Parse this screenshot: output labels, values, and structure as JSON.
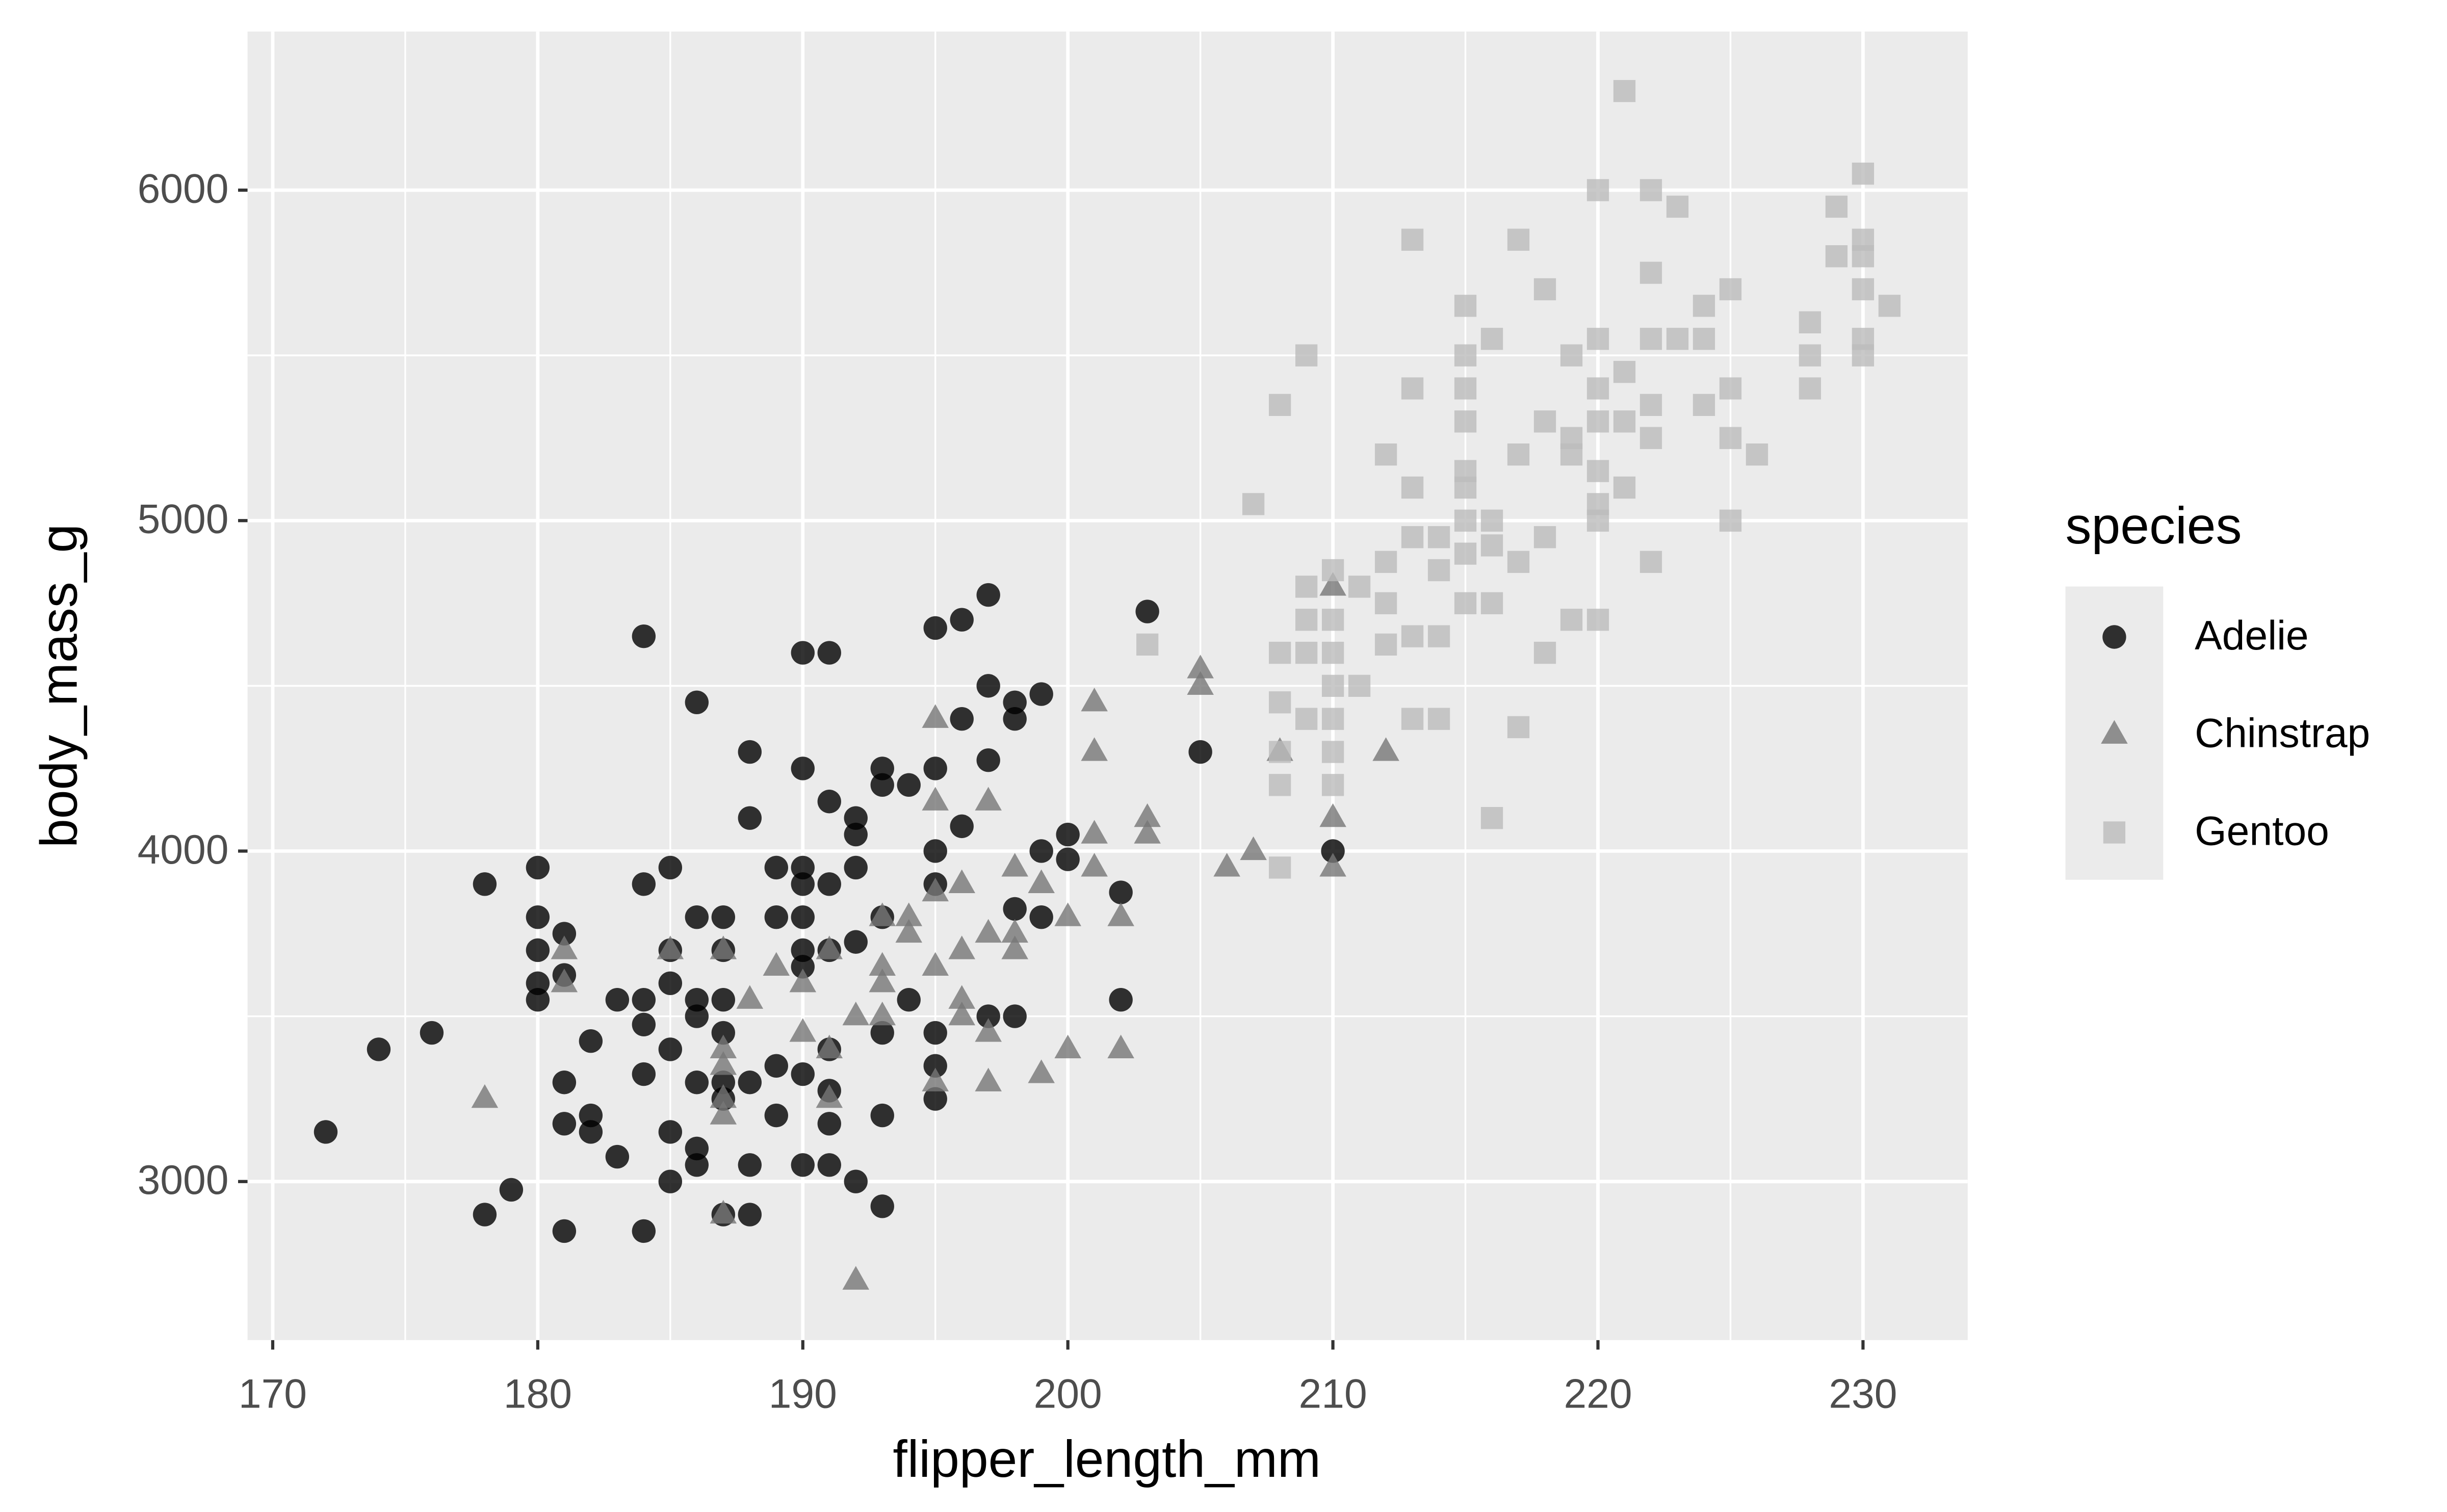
{
  "chart_data": {
    "type": "scatter",
    "x_label": "flipper_length_mm",
    "y_label": "body_mass_g",
    "legend_title": "species",
    "legend_position": "right",
    "grid": true,
    "xlim": [
      169.05,
      233.95
    ],
    "ylim": [
      2520,
      6480
    ],
    "xticks": [
      170,
      180,
      190,
      200,
      210,
      220,
      230
    ],
    "yticks": [
      3000,
      4000,
      5000,
      6000
    ],
    "series": [
      {
        "name": "Adelie",
        "color": "#000000",
        "shape": "circle",
        "x": [
          172,
          174,
          176,
          178,
          178,
          179,
          180,
          180,
          180,
          180,
          180,
          181,
          181,
          181,
          181,
          181,
          182,
          182,
          182,
          183,
          183,
          184,
          184,
          184,
          184,
          184,
          184,
          185,
          185,
          185,
          185,
          185,
          185,
          186,
          186,
          186,
          186,
          186,
          186,
          186,
          187,
          187,
          187,
          187,
          187,
          187,
          187,
          188,
          188,
          188,
          188,
          188,
          189,
          189,
          189,
          189,
          190,
          190,
          190,
          190,
          190,
          190,
          190,
          190,
          190,
          191,
          191,
          191,
          191,
          191,
          191,
          191,
          191,
          192,
          192,
          192,
          192,
          192,
          193,
          193,
          193,
          193,
          193,
          193,
          194,
          194,
          195,
          195,
          195,
          195,
          195,
          195,
          195,
          196,
          196,
          196,
          197,
          197,
          197,
          197,
          198,
          198,
          198,
          198,
          199,
          199,
          199,
          200,
          200,
          202,
          202,
          203,
          205,
          210
        ],
        "values": [
          3150,
          3400,
          3450,
          3900,
          2900,
          2975,
          3950,
          3800,
          3700,
          3600,
          3550,
          3750,
          3625,
          3300,
          3175,
          2850,
          3425,
          3200,
          3150,
          3550,
          3075,
          4650,
          3900,
          3550,
          3475,
          3325,
          2850,
          3950,
          3700,
          3600,
          3400,
          3150,
          3000,
          4450,
          3800,
          3550,
          3500,
          3300,
          3100,
          3050,
          3800,
          3700,
          3550,
          3450,
          3300,
          3250,
          2900,
          4300,
          4100,
          3300,
          3050,
          2900,
          3950,
          3800,
          3350,
          3200,
          4600,
          4250,
          3950,
          3900,
          3800,
          3700,
          3650,
          3325,
          3050,
          4600,
          4150,
          3900,
          3700,
          3400,
          3275,
          3175,
          3050,
          4100,
          4050,
          3950,
          3725,
          3000,
          4250,
          4200,
          3800,
          3450,
          3200,
          2925,
          4200,
          3550,
          4675,
          4250,
          4000,
          3900,
          3450,
          3350,
          3250,
          4700,
          4400,
          4075,
          4775,
          4500,
          4275,
          3500,
          4450,
          4400,
          3825,
          3500,
          4475,
          4000,
          3800,
          3975,
          4050,
          3875,
          3550,
          4725,
          4300,
          4000
        ]
      },
      {
        "name": "Chinstrap",
        "color": "#777777",
        "shape": "triangle",
        "x": [
          178,
          181,
          181,
          185,
          187,
          187,
          187,
          187,
          187,
          187,
          188,
          189,
          190,
          190,
          191,
          191,
          191,
          192,
          192,
          193,
          193,
          193,
          193,
          194,
          194,
          195,
          195,
          195,
          195,
          195,
          196,
          196,
          196,
          196,
          197,
          197,
          197,
          197,
          198,
          198,
          198,
          199,
          199,
          200,
          200,
          201,
          201,
          201,
          201,
          202,
          202,
          203,
          203,
          205,
          205,
          206,
          207,
          208,
          210,
          210,
          210,
          212
        ],
        "values": [
          3250,
          3700,
          3600,
          3700,
          3700,
          3400,
          3350,
          3250,
          3200,
          2900,
          3550,
          3650,
          3600,
          3450,
          3700,
          3400,
          3250,
          3500,
          2700,
          3800,
          3650,
          3600,
          3500,
          3750,
          3800,
          4400,
          4150,
          3875,
          3650,
          3300,
          3900,
          3700,
          3500,
          3550,
          4150,
          3750,
          3450,
          3300,
          3950,
          3700,
          3750,
          3900,
          3325,
          3800,
          3400,
          4450,
          4300,
          4050,
          3950,
          3800,
          3400,
          4100,
          4050,
          4550,
          4500,
          3950,
          4000,
          4300,
          4800,
          4100,
          3950,
          4300
        ]
      },
      {
        "name": "Gentoo",
        "color": "#bbbbbb",
        "shape": "square",
        "x": [
          203,
          207,
          208,
          208,
          208,
          208,
          208,
          208,
          209,
          209,
          209,
          209,
          209,
          210,
          210,
          210,
          210,
          210,
          210,
          210,
          211,
          211,
          212,
          212,
          212,
          212,
          213,
          213,
          213,
          213,
          213,
          213,
          214,
          214,
          214,
          214,
          215,
          215,
          215,
          215,
          215,
          215,
          215,
          215,
          215,
          216,
          216,
          216,
          216,
          216,
          217,
          217,
          217,
          217,
          218,
          218,
          218,
          218,
          219,
          219,
          219,
          219,
          220,
          220,
          220,
          220,
          220,
          220,
          220,
          220,
          221,
          221,
          221,
          221,
          222,
          222,
          222,
          222,
          222,
          222,
          223,
          223,
          224,
          224,
          224,
          225,
          225,
          225,
          225,
          226,
          228,
          228,
          228,
          229,
          229,
          230,
          230,
          230,
          230,
          230,
          230,
          231
        ],
        "values": [
          4625,
          5050,
          5350,
          4600,
          4450,
          4300,
          4200,
          3950,
          5500,
          4800,
          4700,
          4600,
          4400,
          4850,
          4700,
          4600,
          4500,
          4400,
          4300,
          4200,
          4500,
          4800,
          5200,
          4875,
          4750,
          4625,
          5850,
          5400,
          5100,
          4950,
          4650,
          4400,
          4950,
          4850,
          4650,
          4400,
          5650,
          5500,
          5400,
          5300,
          5150,
          5100,
          5000,
          4900,
          4750,
          5550,
          5000,
          4925,
          4750,
          4100,
          5850,
          5200,
          4875,
          4375,
          5700,
          5300,
          4950,
          4600,
          5500,
          5250,
          5200,
          4700,
          6000,
          5550,
          5400,
          5300,
          5150,
          5050,
          5000,
          4700,
          6300,
          5450,
          5300,
          5100,
          6000,
          5750,
          5550,
          5350,
          5250,
          4875,
          5950,
          5550,
          5650,
          5350,
          5550,
          5700,
          5400,
          5250,
          5000,
          5200,
          5600,
          5500,
          5400,
          5950,
          5800,
          6050,
          5850,
          5700,
          5550,
          5500,
          5800,
          5650
        ]
      }
    ]
  }
}
